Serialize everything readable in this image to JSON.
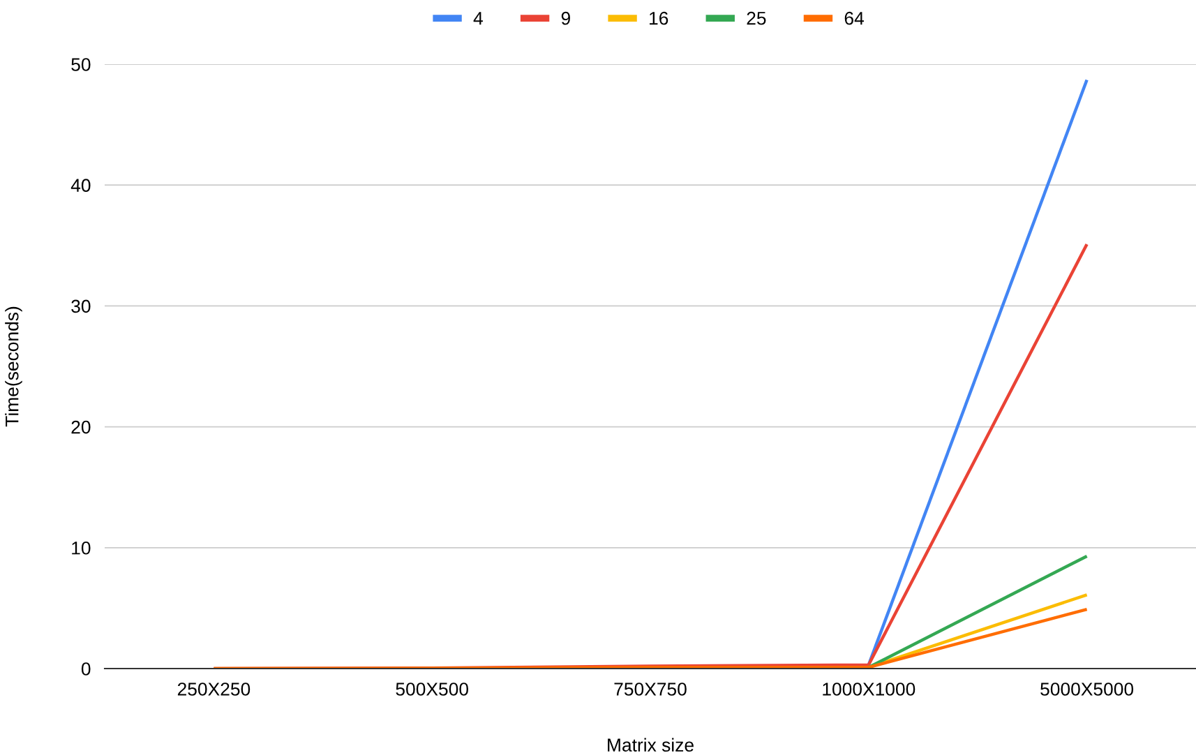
{
  "chart_data": {
    "type": "line",
    "xlabel": "Matrix size",
    "ylabel": "Time(seconds)",
    "categories": [
      "250X250",
      "500X500",
      "750X750",
      "1000X1000",
      "5000X5000"
    ],
    "series": [
      {
        "name": "4",
        "color": "#4285f4",
        "values": [
          null,
          null,
          null,
          0.3,
          48.7
        ]
      },
      {
        "name": "9",
        "color": "#ea4335",
        "values": [
          0,
          0.05,
          0.2,
          0.3,
          35.1
        ]
      },
      {
        "name": "16",
        "color": "#fbbc04",
        "values": [
          null,
          null,
          null,
          0.1,
          6.1
        ]
      },
      {
        "name": "25",
        "color": "#34a853",
        "values": [
          null,
          null,
          null,
          0.1,
          9.3
        ]
      },
      {
        "name": "64",
        "color": "#ff6d01",
        "values": [
          0,
          0.03,
          0.1,
          0.1,
          4.9
        ]
      }
    ],
    "ylim": [
      0,
      50
    ],
    "yticks": [
      0,
      10,
      20,
      30,
      40,
      50
    ],
    "grid": "y",
    "legend": "top",
    "marker": "none",
    "line_style": "solid"
  }
}
